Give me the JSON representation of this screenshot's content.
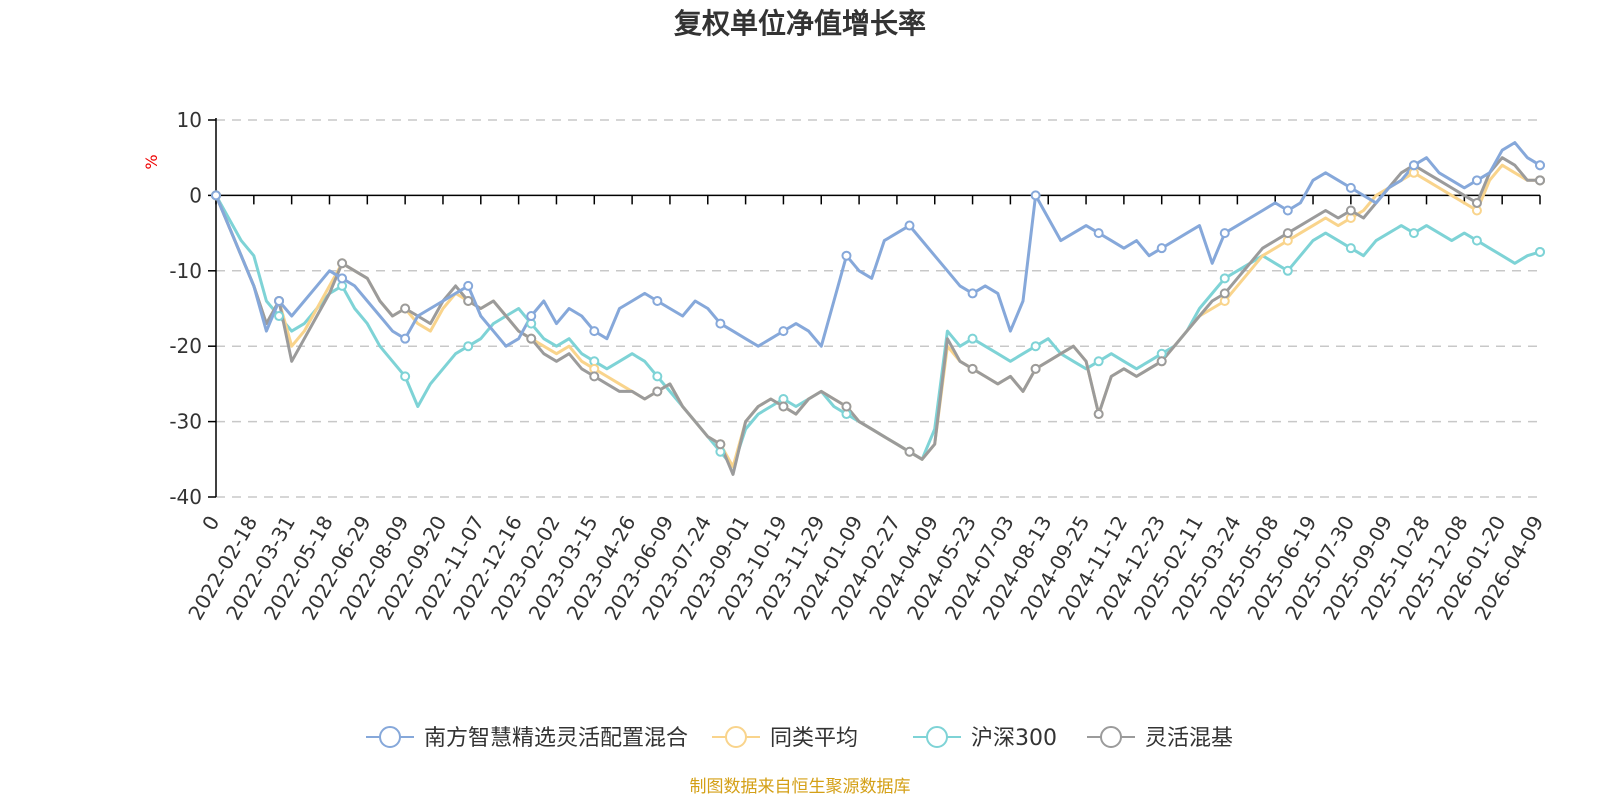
{
  "chart_data": {
    "type": "line",
    "title": "复权单位净值增长率",
    "ylabel": "%",
    "xlabel": "",
    "ylim": [
      -40,
      10
    ],
    "yticks": [
      10,
      0,
      -10,
      -20,
      -30,
      -40
    ],
    "grid": true,
    "legend_position": "bottom",
    "x_tick_labels": [
      "0",
      "2022-02-18",
      "2022-03-31",
      "2022-05-18",
      "2022-06-29",
      "2022-08-09",
      "2022-09-20",
      "2022-11-07",
      "2022-12-16",
      "2023-02-02",
      "2023-03-15",
      "2023-04-26",
      "2023-06-09",
      "2023-07-24",
      "2023-09-01",
      "2023-10-19",
      "2023-11-29",
      "2024-01-09",
      "2024-02-27",
      "2024-04-09",
      "2024-05-23",
      "2024-07-03",
      "2024-08-13",
      "2024-09-25",
      "2024-11-12",
      "2024-12-23",
      "2025-02-11",
      "2025-03-24",
      "2025-05-08",
      "2025-06-19",
      "2025-07-30",
      "2025-09-09",
      "2025-10-28",
      "2025-12-08",
      "2026-01-20",
      "2026-04-09"
    ],
    "series": [
      {
        "name": "南方智慧精选灵活配置混合",
        "color": "#86a8da",
        "values": [
          0,
          -4,
          -8,
          -12,
          -18,
          -14,
          -16,
          -14,
          -12,
          -10,
          -11,
          -12,
          -14,
          -16,
          -18,
          -19,
          -16,
          -15,
          -14,
          -13,
          -12,
          -16,
          -18,
          -20,
          -19,
          -16,
          -14,
          -17,
          -15,
          -16,
          -18,
          -19,
          -15,
          -14,
          -13,
          -14,
          -15,
          -16,
          -14,
          -15,
          -17,
          -18,
          -19,
          -20,
          -19,
          -18,
          -17,
          -18,
          -20,
          -14,
          -8,
          -10,
          -11,
          -6,
          -5,
          -4,
          -6,
          -8,
          -10,
          -12,
          -13,
          -12,
          -13,
          -18,
          -14,
          0,
          -3,
          -6,
          -5,
          -4,
          -5,
          -6,
          -7,
          -6,
          -8,
          -7,
          -6,
          -5,
          -4,
          -9,
          -5,
          -4,
          -3,
          -2,
          -1,
          -2,
          -1,
          2,
          3,
          2,
          1,
          0,
          -1,
          1,
          2,
          4,
          5,
          3,
          2,
          1,
          2,
          3,
          6,
          7,
          5,
          4
        ]
      },
      {
        "name": "同类平均",
        "color": "#f9d48c",
        "values": [
          0,
          -4,
          -8,
          -12,
          -17,
          -14,
          -20,
          -18,
          -15,
          -12,
          -9,
          -10,
          -11,
          -14,
          -16,
          -15,
          -17,
          -18,
          -15,
          -13,
          -14,
          -15,
          -14,
          -16,
          -18,
          -19,
          -20,
          -21,
          -20,
          -22,
          -23,
          -24,
          -25,
          -26,
          -27,
          -26,
          -25,
          -28,
          -30,
          -32,
          -33,
          -36,
          -30,
          -28,
          -27,
          -28,
          -29,
          -27,
          -26,
          -27,
          -28,
          -30,
          -31,
          -32,
          -33,
          -34,
          -35,
          -33,
          -20,
          -22,
          -23,
          -24,
          -25,
          -24,
          -26,
          -23,
          -22,
          -21,
          -20,
          -22,
          -29,
          -24,
          -23,
          -24,
          -23,
          -22,
          -20,
          -18,
          -16,
          -15,
          -14,
          -12,
          -10,
          -8,
          -7,
          -6,
          -5,
          -4,
          -3,
          -4,
          -3,
          -2,
          0,
          1,
          2,
          3,
          2,
          1,
          0,
          -1,
          -2,
          2,
          4,
          3,
          2,
          2
        ]
      },
      {
        "name": "沪深300",
        "color": "#7ed3d6",
        "values": [
          0,
          -3,
          -6,
          -8,
          -14,
          -16,
          -18,
          -17,
          -15,
          -13,
          -12,
          -15,
          -17,
          -20,
          -22,
          -24,
          -28,
          -25,
          -23,
          -21,
          -20,
          -19,
          -17,
          -16,
          -15,
          -17,
          -19,
          -20,
          -19,
          -21,
          -22,
          -23,
          -22,
          -21,
          -22,
          -24,
          -26,
          -28,
          -30,
          -32,
          -34,
          -36,
          -31,
          -29,
          -28,
          -27,
          -28,
          -27,
          -26,
          -28,
          -29,
          -30,
          -31,
          -32,
          -33,
          -34,
          -35,
          -31,
          -18,
          -20,
          -19,
          -20,
          -21,
          -22,
          -21,
          -20,
          -19,
          -21,
          -22,
          -23,
          -22,
          -21,
          -22,
          -23,
          -22,
          -21,
          -20,
          -18,
          -15,
          -13,
          -11,
          -10,
          -9,
          -8,
          -9,
          -10,
          -8,
          -6,
          -5,
          -6,
          -7,
          -8,
          -6,
          -5,
          -4,
          -5,
          -4,
          -5,
          -6,
          -5,
          -6,
          -7,
          -8,
          -9,
          -8,
          -7.5
        ]
      },
      {
        "name": "灵活混基",
        "color": "#9b9b9b",
        "values": [
          0,
          -4,
          -8,
          -12,
          -17,
          -14,
          -22,
          -19,
          -16,
          -13,
          -9,
          -10,
          -11,
          -14,
          -16,
          -15,
          -16,
          -17,
          -14,
          -12,
          -14,
          -15,
          -14,
          -16,
          -18,
          -19,
          -21,
          -22,
          -21,
          -23,
          -24,
          -25,
          -26,
          -26,
          -27,
          -26,
          -25,
          -28,
          -30,
          -32,
          -33,
          -37,
          -30,
          -28,
          -27,
          -28,
          -29,
          -27,
          -26,
          -27,
          -28,
          -30,
          -31,
          -32,
          -33,
          -34,
          -35,
          -33,
          -19,
          -22,
          -23,
          -24,
          -25,
          -24,
          -26,
          -23,
          -22,
          -21,
          -20,
          -22,
          -29,
          -24,
          -23,
          -24,
          -23,
          -22,
          -20,
          -18,
          -16,
          -14,
          -13,
          -11,
          -9,
          -7,
          -6,
          -5,
          -4,
          -3,
          -2,
          -3,
          -2,
          -3,
          -1,
          1,
          3,
          4,
          3,
          2,
          1,
          0,
          -1,
          3,
          5,
          4,
          2,
          2
        ]
      }
    ]
  },
  "source_text": "制图数据来自恒生聚源数据库",
  "colors": {
    "source": "#d4a017",
    "unit": "#ee0000"
  }
}
